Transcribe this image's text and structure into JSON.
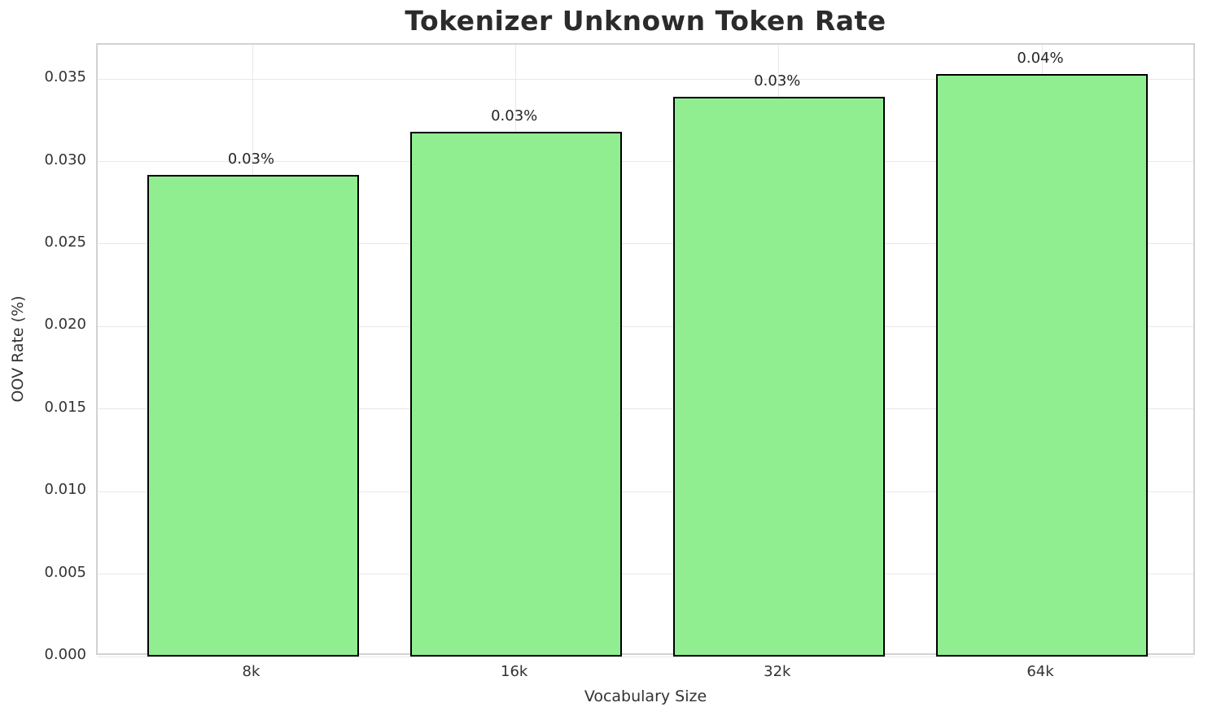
{
  "title": "Tokenizer Unknown Token Rate",
  "chart_data": {
    "type": "bar",
    "title": "Tokenizer Unknown Token Rate",
    "xlabel": "Vocabulary Size",
    "ylabel": "OOV Rate (%)",
    "categories": [
      "8k",
      "16k",
      "32k",
      "64k"
    ],
    "values": [
      0.0292,
      0.0318,
      0.0339,
      0.0353
    ],
    "bar_labels": [
      "0.03%",
      "0.03%",
      "0.03%",
      "0.04%"
    ],
    "yticks": [
      0.0,
      0.005,
      0.01,
      0.015,
      0.02,
      0.025,
      0.03,
      0.035
    ],
    "ytick_labels": [
      "0.000",
      "0.005",
      "0.010",
      "0.015",
      "0.020",
      "0.025",
      "0.030",
      "0.035"
    ],
    "ylim": [
      0,
      0.03708
    ],
    "grid": true,
    "legend": false,
    "colors": {
      "bar_fill": "#90EE90",
      "bar_edge": "#000000",
      "grid": "#e8e8e8",
      "spine": "#d2d2d2",
      "text": "#333333",
      "title_text": "#2b2b2b",
      "background": "#ffffff"
    }
  }
}
